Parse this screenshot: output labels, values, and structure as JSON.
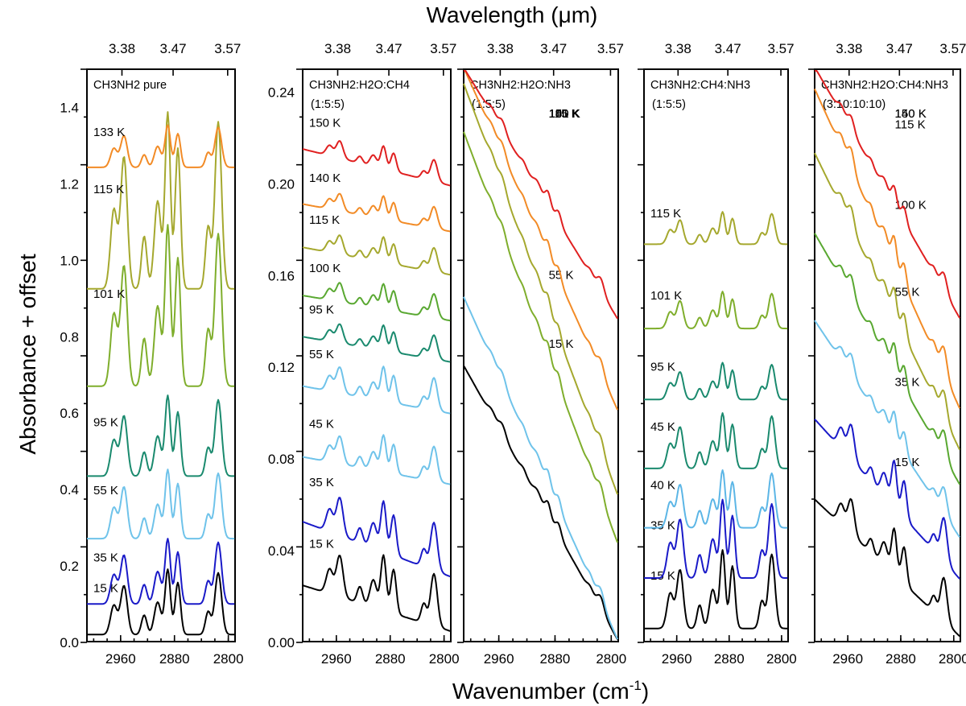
{
  "chart_data": {
    "type": "line",
    "top_axis_title": "Wavelength (μm)",
    "bottom_axis_title": "Wavenumber (cm-1)",
    "y_axis_title": "Absorbance + offset",
    "x_range_cm": [
      3010,
      2790
    ],
    "x_ticks_cm": [
      "2960",
      "2880",
      "2800"
    ],
    "wl_ticks_um": [
      "3.38",
      "3.47",
      "3.57"
    ],
    "colors": {
      "15K": "#000000",
      "35K": "#1a1ac8",
      "55K": "#6fc3ea",
      "95K": "#1a8a6e",
      "100K": "#59a831",
      "101K": "#7fae2c",
      "115K": "#a5a82e",
      "140K": "#f28b26",
      "150K": "#e02020",
      "40K": "#5cb6e6",
      "45K": "#1a8a6e"
    },
    "panels": [
      {
        "label": "CH3NH2 pure",
        "ratio": "",
        "ylim": [
          0,
          1.5
        ],
        "y_ticks": [
          "0.0",
          "0.2",
          "0.4",
          "0.6",
          "0.8",
          "1.0",
          "1.2",
          "1.4"
        ],
        "series": [
          {
            "name": "15 K",
            "color": "15K",
            "offset": 0.0,
            "peak": 0.17,
            "slope": 0
          },
          {
            "name": "35 K",
            "color": "35K",
            "offset": 0.08,
            "peak": 0.17,
            "slope": 0
          },
          {
            "name": "55 K",
            "color": "55K",
            "offset": 0.25,
            "peak": 0.18,
            "slope": 0
          },
          {
            "name": "95 K",
            "color": "95K",
            "offset": 0.41,
            "peak": 0.21,
            "slope": 0
          },
          {
            "name": "101 K",
            "color": "101K",
            "offset": 0.62,
            "peak": 0.42,
            "slope": 0
          },
          {
            "name": "115 K",
            "color": "115K",
            "offset": 0.87,
            "peak": 0.46,
            "slope": 0
          },
          {
            "name": "133 K",
            "color": "140K",
            "offset": 1.23,
            "peak": 0.11,
            "slope": 0
          }
        ]
      },
      {
        "label": "CH3NH2:H2O:CH4",
        "ratio": "(1:5:5)",
        "ylim": [
          0,
          0.25
        ],
        "y_ticks": [
          "0.00",
          "0.04",
          "0.08",
          "0.12",
          "0.16",
          "0.20",
          "0.24"
        ],
        "series": [
          {
            "name": "15 K",
            "color": "15K",
            "offset": 0.002,
            "peak": 0.024,
            "slope": 0.02
          },
          {
            "name": "35 K",
            "color": "35K",
            "offset": 0.026,
            "peak": 0.022,
            "slope": 0.024
          },
          {
            "name": "45 K",
            "color": "55K",
            "offset": 0.067,
            "peak": 0.016,
            "slope": 0.012
          },
          {
            "name": "55 K",
            "color": "55K",
            "offset": 0.098,
            "peak": 0.015,
            "slope": 0.012
          },
          {
            "name": "95 K",
            "color": "95K",
            "offset": 0.121,
            "peak": 0.011,
            "slope": 0.011
          },
          {
            "name": "100 K",
            "color": "100K",
            "offset": 0.139,
            "peak": 0.011,
            "slope": 0.011
          },
          {
            "name": "115 K",
            "color": "115K",
            "offset": 0.159,
            "peak": 0.011,
            "slope": 0.012
          },
          {
            "name": "140 K",
            "color": "140K",
            "offset": 0.178,
            "peak": 0.01,
            "slope": 0.012
          },
          {
            "name": "150 K",
            "color": "150K",
            "offset": 0.198,
            "peak": 0.01,
            "slope": 0.016
          }
        ]
      },
      {
        "label": "CH3NH2:H2O:NH3",
        "ratio": "(1:5:5)",
        "ylim": [
          0,
          0.25
        ],
        "y_ticks": [],
        "series": [
          {
            "name": "15 K",
            "color": "15K",
            "offset": 0.0,
            "peak": 0.006,
            "slope": 0.12
          },
          {
            "name": "55 K",
            "color": "55K",
            "offset": 0.0,
            "peak": 0.006,
            "slope": 0.15
          },
          {
            "name": "101 K",
            "color": "101K",
            "offset": 0.042,
            "peak": 0.006,
            "slope": 0.18
          },
          {
            "name": "115 K",
            "color": "115K",
            "offset": 0.063,
            "peak": 0.006,
            "slope": 0.18
          },
          {
            "name": "140 K",
            "color": "140K",
            "offset": 0.1,
            "peak": 0.006,
            "slope": 0.15
          },
          {
            "name": "150 K",
            "color": "150K",
            "offset": 0.14,
            "peak": 0.006,
            "slope": 0.11
          }
        ]
      },
      {
        "label": "CH3NH2:CH4:NH3",
        "ratio": "(1:5:5)",
        "ylim": [
          0,
          0.25
        ],
        "y_ticks": [],
        "series": [
          {
            "name": "15 K",
            "color": "15K",
            "offset": 0.002,
            "peak": 0.034,
            "slope": 0
          },
          {
            "name": "35 K",
            "color": "35K",
            "offset": 0.024,
            "peak": 0.034,
            "slope": 0
          },
          {
            "name": "40 K",
            "color": "40K",
            "offset": 0.047,
            "peak": 0.025,
            "slope": 0
          },
          {
            "name": "45 K",
            "color": "45K",
            "offset": 0.073,
            "peak": 0.024,
            "slope": 0
          },
          {
            "name": "95 K",
            "color": "95K",
            "offset": 0.104,
            "peak": 0.016,
            "slope": 0
          },
          {
            "name": "101 K",
            "color": "101K",
            "offset": 0.135,
            "peak": 0.016,
            "slope": 0
          },
          {
            "name": "115 K",
            "color": "115K",
            "offset": 0.172,
            "peak": 0.014,
            "slope": 0
          }
        ]
      },
      {
        "label": "CH3NH2:H2O:CH4:NH3",
        "ratio": "(3:10:10:10)",
        "ylim": [
          0,
          0.25
        ],
        "y_ticks": [],
        "series": [
          {
            "name": "15 K",
            "color": "15K",
            "offset": 0.0,
            "peak": 0.02,
            "slope": 0.06
          },
          {
            "name": "35 K",
            "color": "35K",
            "offset": 0.025,
            "peak": 0.02,
            "slope": 0.07
          },
          {
            "name": "55 K",
            "color": "55K",
            "offset": 0.044,
            "peak": 0.012,
            "slope": 0.095
          },
          {
            "name": "100 K",
            "color": "100K",
            "offset": 0.067,
            "peak": 0.012,
            "slope": 0.11
          },
          {
            "name": "115 K",
            "color": "115K",
            "offset": 0.082,
            "peak": 0.012,
            "slope": 0.13
          },
          {
            "name": "140 K",
            "color": "140K",
            "offset": 0.1,
            "peak": 0.012,
            "slope": 0.14
          },
          {
            "name": "150 K",
            "color": "150K",
            "offset": 0.14,
            "peak": 0.008,
            "slope": 0.11
          }
        ]
      }
    ]
  }
}
